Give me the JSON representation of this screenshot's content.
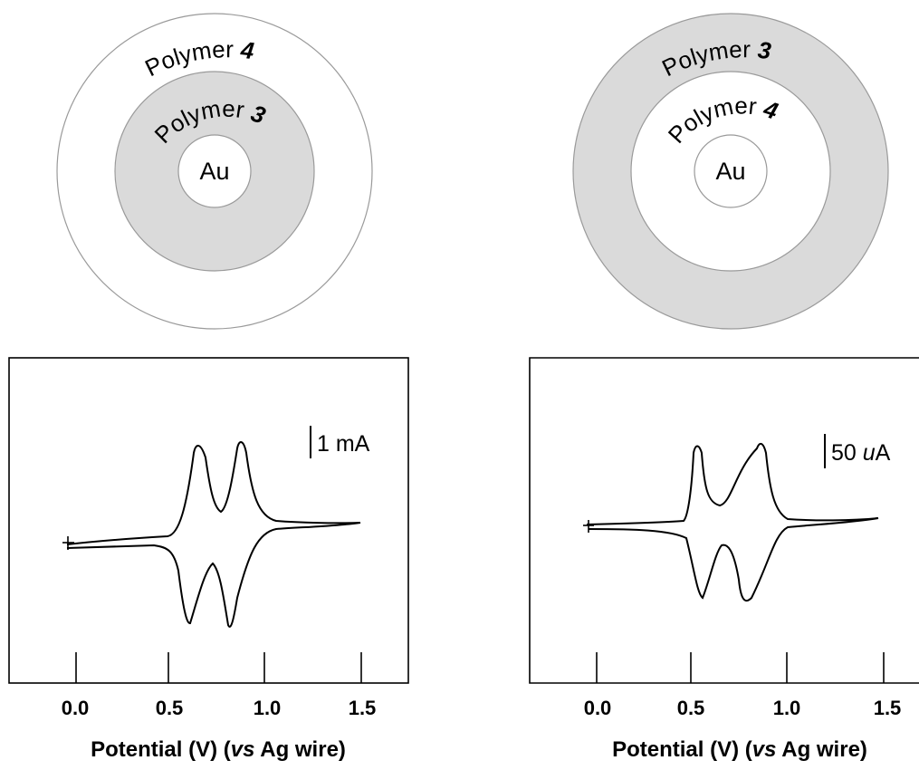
{
  "left": {
    "diagram": {
      "outer_label_text": "Polymer ",
      "outer_label_num": "4",
      "inner_label_text": "Polymer ",
      "inner_label_num": "3",
      "core_label": "Au",
      "shaded_layer": "inner"
    },
    "cv": {
      "ticks": [
        "0.0",
        "0.5",
        "1.0",
        "1.5"
      ],
      "xlabel_pre": "Potential (V) (",
      "xlabel_vs": "vs",
      "xlabel_post": " Ag wire)",
      "scale_bar_label": "1 mA"
    }
  },
  "right": {
    "diagram": {
      "outer_label_text": "Polymer ",
      "outer_label_num": "3",
      "inner_label_text": "Polymer ",
      "inner_label_num": "4",
      "core_label": "Au",
      "shaded_layer": "outer"
    },
    "cv": {
      "ticks": [
        "0.0",
        "0.5",
        "1.0",
        "1.5"
      ],
      "xlabel_pre": "Potential (V) (",
      "xlabel_vs": "vs",
      "xlabel_post": " Ag wire)",
      "scale_bar_pre": "50 ",
      "scale_bar_unit_italic": "u",
      "scale_bar_post": "A"
    }
  },
  "colors": {
    "shade": "#dadada",
    "line": "#000000",
    "ring_stroke": "#9a9a9a"
  }
}
